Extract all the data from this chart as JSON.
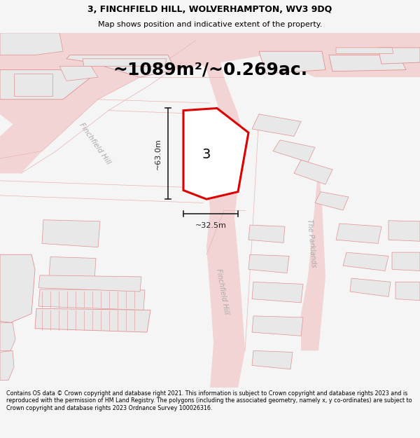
{
  "title_line1": "3, FINCHFIELD HILL, WOLVERHAMPTON, WV3 9DQ",
  "title_line2": "Map shows position and indicative extent of the property.",
  "area_text": "~1089m²/~0.269ac.",
  "property_number": "3",
  "dim_vertical": "~63.0m",
  "dim_horizontal": "~32.5m",
  "footer_text": "Contains OS data © Crown copyright and database right 2021. This information is subject to Crown copyright and database rights 2023 and is reproduced with the permission of HM Land Registry. The polygons (including the associated geometry, namely x, y co-ordinates) are subject to Crown copyright and database rights 2023 Ordnance Survey 100026316.",
  "bg_color": "#f5f5f5",
  "map_bg": "#ffffff",
  "road_fill": "#f2d4d4",
  "road_edge": "#e8b4b4",
  "bld_fill": "#e8e8e8",
  "bld_edge": "#e09090",
  "prop_fill": "#ffffff",
  "prop_edge": "#dd0000",
  "dim_color": "#222222",
  "label_color": "#aaaaaa",
  "street_label_finchfield": "Finchfield Hill",
  "street_label_parklands": "The Parklands"
}
